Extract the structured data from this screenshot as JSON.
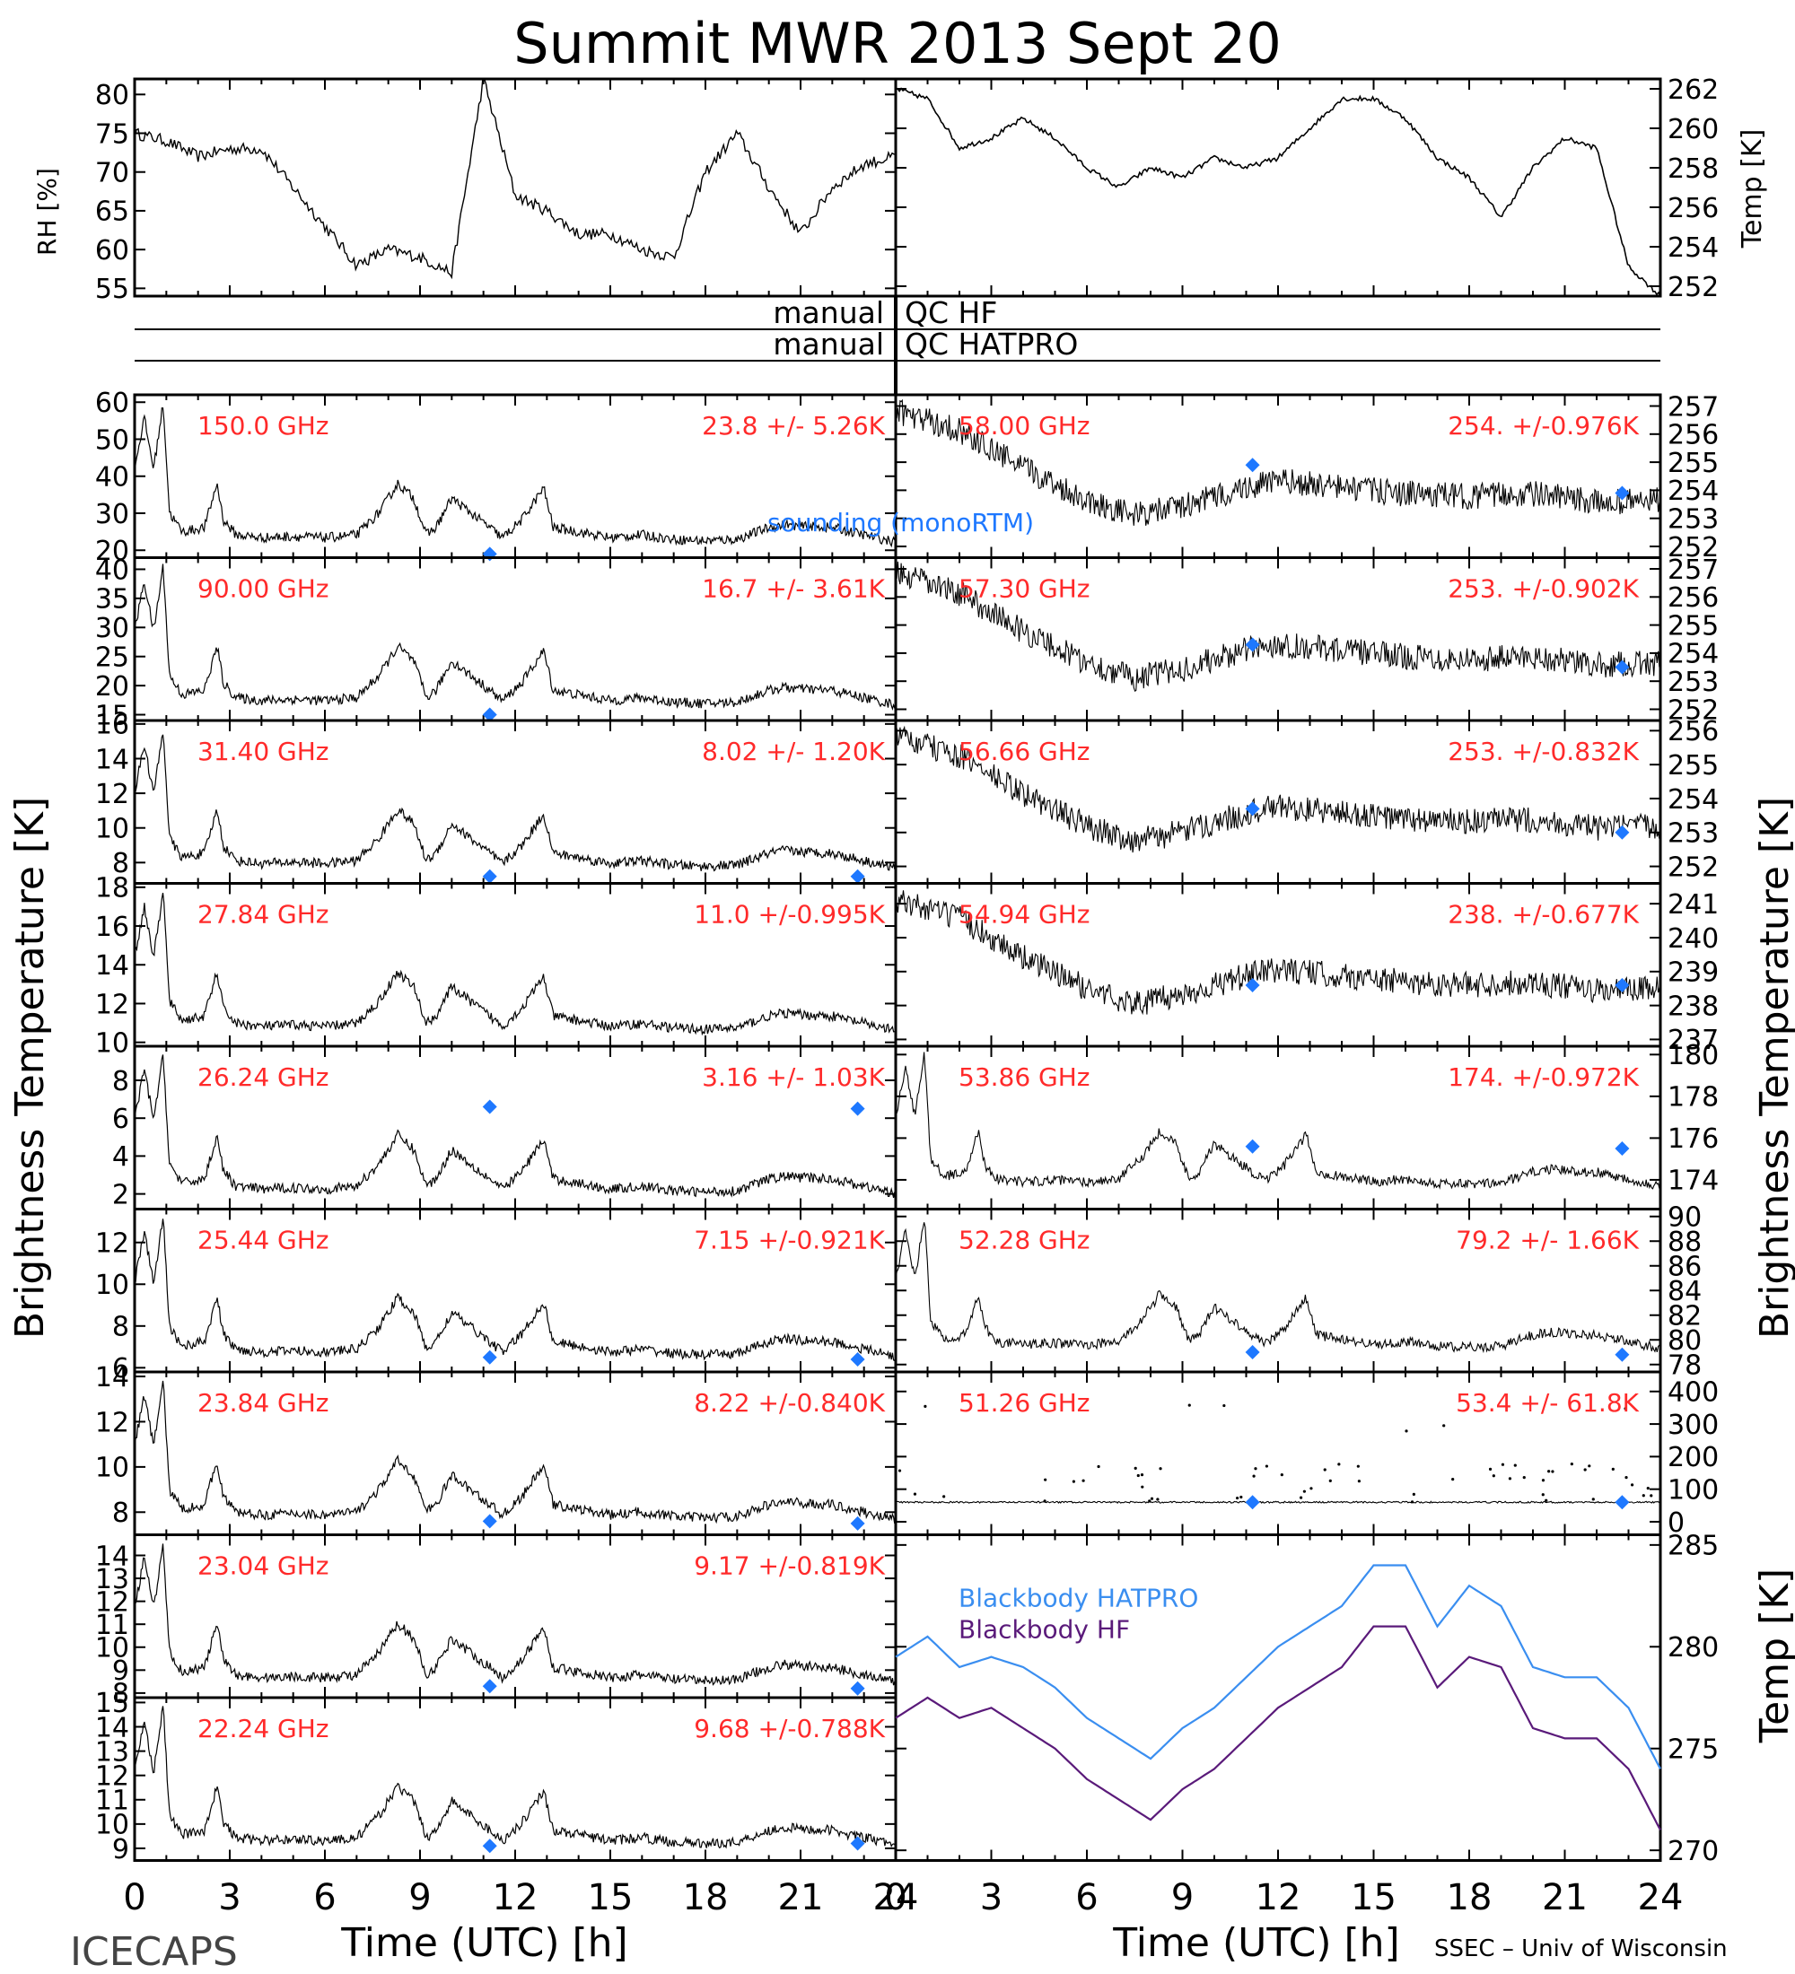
{
  "title": "Summit MWR 2013 Sept 20",
  "footer_left": "ICECAPS",
  "footer_right": "SSEC – Univ of Wisconsin",
  "colors": {
    "label_red": "#ff2a2a",
    "sonde_blue": "#1e78ff",
    "bb_hatpro": "#3a8ef0",
    "bb_hf": "#5a1a7a",
    "trace": "#000000"
  },
  "labels": {
    "rh_axis": "RH [%]",
    "temp_axis_top": "Temp [K]",
    "bt_left": "Brightness Temperature [K]",
    "bt_right": "Brightness Temperature [K]",
    "temp_axis_bottom": "Temp [K]",
    "time_axis_left": "Time (UTC) [h]",
    "time_axis_right": "Time (UTC) [h]",
    "qc_hf_left": "manual",
    "qc_hf_right": "QC HF",
    "qc_hatpro_left": "manual",
    "qc_hatpro_right": "QC HATPRO",
    "sounding_label": "sounding (monoRTM)",
    "bb_hatpro_label": "Blackbody HATPRO",
    "bb_hf_label": "Blackbody HF"
  },
  "time_ticks": [
    "0",
    "3",
    "6",
    "9",
    "12",
    "15",
    "18",
    "21",
    "24"
  ],
  "chart_data": [
    {
      "type": "line",
      "panel": "rh",
      "ylabel": "RH [%]",
      "ylim": [
        54,
        82
      ],
      "yticks": [
        "55",
        "60",
        "65",
        "70",
        "75",
        "80"
      ],
      "x_hours": [
        0,
        1,
        2,
        3,
        4,
        5,
        6,
        7,
        8,
        9,
        10,
        11,
        12,
        13,
        14,
        15,
        16,
        17,
        18,
        19,
        20,
        21,
        22,
        23,
        24
      ],
      "values": [
        75,
        74,
        72,
        73,
        73,
        68,
        63,
        58,
        60,
        59,
        57,
        82,
        67,
        65,
        62,
        62,
        60,
        59,
        70,
        75,
        68,
        62,
        68,
        71,
        72
      ]
    },
    {
      "type": "line",
      "panel": "temp",
      "ylabel": "Temp [K]",
      "ylim": [
        251.5,
        262.5
      ],
      "yticks": [
        "252",
        "254",
        "256",
        "258",
        "260",
        "262"
      ],
      "x_hours": [
        0,
        1,
        2,
        3,
        4,
        5,
        6,
        7,
        8,
        9,
        10,
        11,
        12,
        13,
        14,
        15,
        16,
        17,
        18,
        19,
        20,
        21,
        22,
        23,
        24
      ],
      "values": [
        262,
        261.5,
        259,
        259.5,
        260.5,
        259.5,
        258,
        257,
        258,
        257.5,
        258.5,
        258,
        258.5,
        260,
        261.5,
        261.5,
        260.5,
        258.5,
        257.5,
        255.5,
        258,
        259.5,
        259,
        253,
        251.5
      ]
    },
    {
      "type": "line",
      "panel": "bt-left",
      "rows": [
        {
          "freq": "150.0 GHz",
          "stat": "23.8 +/- 5.26K",
          "ylim": [
            18,
            62
          ],
          "yticks": [
            "20",
            "30",
            "40",
            "50",
            "60"
          ],
          "sonde": [
            19,
            null
          ]
        },
        {
          "freq": "90.00 GHz",
          "stat": "16.7 +/- 3.61K",
          "ylim": [
            14,
            42
          ],
          "yticks": [
            "15",
            "20",
            "25",
            "30",
            "35",
            "40"
          ],
          "sonde": [
            15,
            null
          ]
        },
        {
          "freq": "31.40 GHz",
          "stat": "8.02 +/- 1.20K",
          "ylim": [
            6.8,
            16.2
          ],
          "yticks": [
            "8",
            "10",
            "12",
            "14",
            "16"
          ],
          "sonde": [
            7.2,
            7.2
          ]
        },
        {
          "freq": "27.84 GHz",
          "stat": "11.0 +/-0.995K",
          "ylim": [
            9.8,
            18.2
          ],
          "yticks": [
            "10",
            "12",
            "14",
            "16",
            "18"
          ],
          "sonde": [
            null,
            null
          ]
        },
        {
          "freq": "26.24 GHz",
          "stat": "3.16 +/- 1.03K",
          "ylim": [
            1.2,
            9.8
          ],
          "yticks": [
            "2",
            "4",
            "6",
            "8"
          ],
          "sonde": [
            6.6,
            6.5
          ]
        },
        {
          "freq": "25.44 GHz",
          "stat": "7.15 +/-0.921K",
          "ylim": [
            5.8,
            13.6
          ],
          "yticks": [
            "6",
            "8",
            "10",
            "12"
          ],
          "sonde": [
            6.5,
            6.4
          ]
        },
        {
          "freq": "23.84 GHz",
          "stat": "8.22 +/-0.840K",
          "ylim": [
            7,
            14.2
          ],
          "yticks": [
            "8",
            "10",
            "12",
            "14"
          ],
          "sonde": [
            7.6,
            7.5
          ]
        },
        {
          "freq": "23.04 GHz",
          "stat": "9.17 +/-0.819K",
          "ylim": [
            7.8,
            14.9
          ],
          "yticks": [
            "8",
            "9",
            "10",
            "11",
            "12",
            "13",
            "14"
          ],
          "sonde": [
            8.3,
            8.2
          ]
        },
        {
          "freq": "22.24 GHz",
          "stat": "9.68 +/-0.788K",
          "ylim": [
            8.5,
            15.2
          ],
          "yticks": [
            "9",
            "10",
            "11",
            "12",
            "13",
            "14",
            "15"
          ],
          "sonde": [
            9.1,
            9.2
          ]
        }
      ]
    },
    {
      "type": "line",
      "panel": "bt-right",
      "rows": [
        {
          "freq": "58.00 GHz",
          "stat": "254. +/-0.976K",
          "ylim": [
            251.6,
            257.4
          ],
          "yticks": [
            "252",
            "253",
            "254",
            "255",
            "256",
            "257"
          ],
          "sonde": [
            254.9,
            253.9
          ]
        },
        {
          "freq": "57.30 GHz",
          "stat": "253. +/-0.902K",
          "ylim": [
            251.6,
            257.4
          ],
          "yticks": [
            "252",
            "253",
            "254",
            "255",
            "256",
            "257"
          ],
          "sonde": [
            254.3,
            253.5
          ]
        },
        {
          "freq": "56.66 GHz",
          "stat": "253. +/-0.832K",
          "ylim": [
            251.5,
            256.3
          ],
          "yticks": [
            "252",
            "253",
            "254",
            "255",
            "256"
          ],
          "sonde": [
            253.7,
            253.0
          ]
        },
        {
          "freq": "54.94 GHz",
          "stat": "238. +/-0.677K",
          "ylim": [
            236.8,
            241.6
          ],
          "yticks": [
            "237",
            "238",
            "239",
            "240",
            "241"
          ],
          "sonde": [
            238.6,
            238.6
          ]
        },
        {
          "freq": "53.86 GHz",
          "stat": "174. +/-0.972K",
          "ylim": [
            172.6,
            180.4
          ],
          "yticks": [
            "174",
            "176",
            "178",
            "180"
          ],
          "sonde": [
            175.6,
            175.5
          ]
        },
        {
          "freq": "52.28 GHz",
          "stat": "79.2 +/- 1.66K",
          "ylim": [
            77.4,
            90.6
          ],
          "yticks": [
            "78",
            "80",
            "82",
            "84",
            "86",
            "88",
            "90"
          ],
          "sonde": [
            79.0,
            78.8
          ]
        },
        {
          "freq": "51.26 GHz",
          "stat": "53.4 +/- 61.8K",
          "ylim": [
            -40,
            460
          ],
          "yticks": [
            "0",
            "100",
            "200",
            "300",
            "400"
          ],
          "sonde": [
            60,
            60
          ]
        }
      ]
    },
    {
      "type": "line",
      "panel": "blackbody",
      "ylabel": "Temp [K]",
      "ylim": [
        269.5,
        285.5
      ],
      "yticks": [
        "270",
        "275",
        "280",
        "285"
      ],
      "x_hours": [
        0,
        1,
        2,
        3,
        4,
        5,
        6,
        7,
        8,
        9,
        10,
        11,
        12,
        13,
        14,
        15,
        16,
        17,
        18,
        19,
        20,
        21,
        22,
        23,
        24
      ],
      "series": [
        {
          "name": "Blackbody HATPRO",
          "values": [
            279.5,
            280.5,
            279,
            279.5,
            279,
            278,
            276.5,
            275.5,
            274.5,
            276,
            277,
            278.5,
            280,
            281,
            282,
            284,
            284,
            281,
            283,
            282,
            279,
            278.5,
            278.5,
            277,
            274
          ]
        },
        {
          "name": "Blackbody HF",
          "values": [
            276.5,
            277.5,
            276.5,
            277,
            276,
            275,
            273.5,
            272.5,
            271.5,
            273,
            274,
            275.5,
            277,
            278,
            279,
            281,
            281,
            278,
            279.5,
            279,
            276,
            275.5,
            275.5,
            274,
            271
          ]
        }
      ]
    }
  ]
}
